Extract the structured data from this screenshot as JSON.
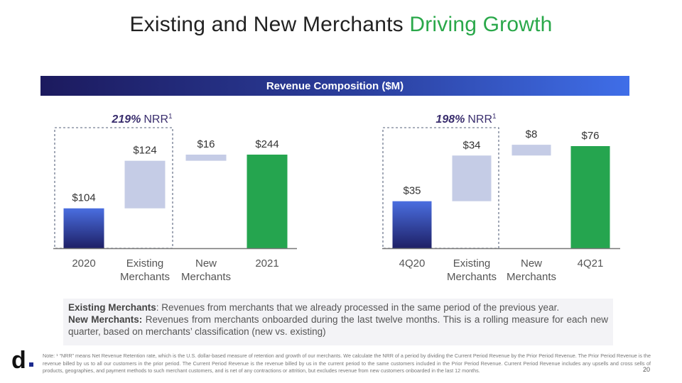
{
  "title": {
    "main": "Existing and New Merchants",
    "accent": "Driving Growth"
  },
  "banner": "Revenue Composition ($M)",
  "colors": {
    "start_top": "#4a6ee0",
    "start_bottom": "#1e2066",
    "existing": "#c5cce6",
    "new": "#c5cce6",
    "end": "#25a54f",
    "dashed": "#55607a",
    "axis": "#777777",
    "title_accent": "#2aa84a"
  },
  "chart_data": [
    {
      "type": "bar",
      "variant": "waterfall",
      "categories": [
        "2020",
        "Existing\nMerchants",
        "New\nMerchants",
        "2021"
      ],
      "values": [
        104,
        124,
        16,
        244
      ],
      "data_labels": [
        "$104",
        "$124",
        "$16",
        "$244"
      ],
      "kinds": [
        "start",
        "delta",
        "delta",
        "end"
      ],
      "annotation": {
        "value": "219%",
        "label": "NRR",
        "sup": "1"
      },
      "ylim": [
        0,
        260
      ]
    },
    {
      "type": "bar",
      "variant": "waterfall",
      "categories": [
        "4Q20",
        "Existing\nMerchants",
        "New\nMerchants",
        "4Q21"
      ],
      "values": [
        35,
        34,
        8,
        76
      ],
      "data_labels": [
        "$35",
        "$34",
        "$8",
        "$76"
      ],
      "kinds": [
        "start",
        "delta",
        "delta",
        "end"
      ],
      "annotation": {
        "value": "198%",
        "label": "NRR",
        "sup": "1"
      },
      "ylim": [
        0,
        82
      ]
    }
  ],
  "definitions": {
    "existing_term": "Existing Merchants",
    "existing_text": ": Revenues from merchants that we already processed in the same period of the previous year.",
    "new_term": "New Merchants:",
    "new_text": " Revenues from merchants onboarded during the last twelve months. This is a rolling measure for each new quarter, based on merchants’ classification (new vs. existing)"
  },
  "footnote": "Note: ¹ “NRR” means Net Revenue Retention rate, which is the U.S. dollar-based measure of retention and growth of our merchants. We calculate the NRR of a period by dividing the Current Period Revenue by the Prior Period Revenue. The Prior Period Revenue is the revenue billed by us to all our customers in the prior period. The Current Period Revenue is the revenue billed by us in the current period to the same customers included in the Prior Period Revenue. Current Period Revenue includes any upsells and cross sells of products, geographies, and payment methods to such merchant customers, and is net of any contractions or attrition, but excludes revenue from new customers onboarded in the last 12 months.",
  "page_number": "20",
  "logo": {
    "letter": "d",
    "icon": "dlocal-logo-icon"
  }
}
